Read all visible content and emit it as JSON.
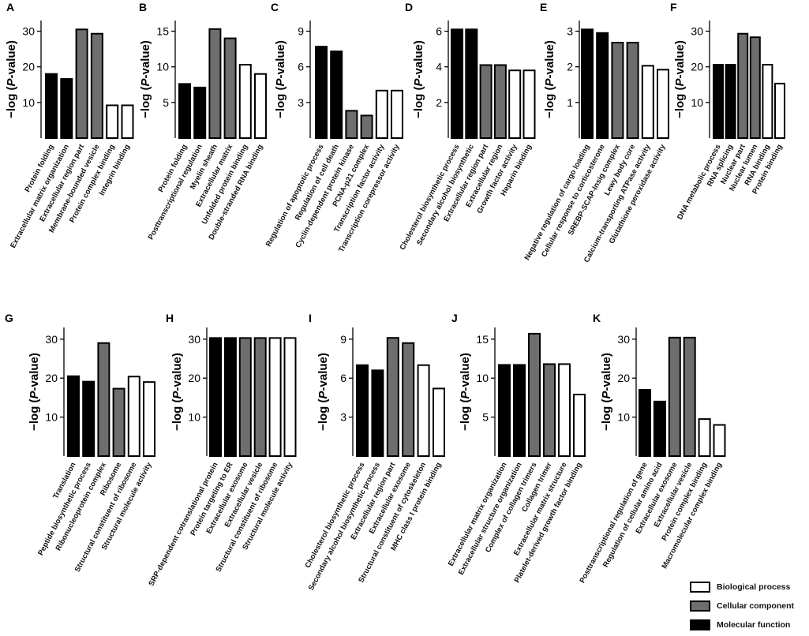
{
  "colors": {
    "Biological process": "#ffffff",
    "Cellular component": "#6e6e6e",
    "Molecular function": "#000000"
  },
  "axis_label": {
    "prefix": "−log (",
    "italic": "P",
    "suffix": "-value)"
  },
  "legend": {
    "items": [
      {
        "label": "Biological process",
        "key": "Biological process"
      },
      {
        "label": "Cellular component",
        "key": "Cellular component"
      },
      {
        "label": "Molecular function",
        "key": "Molecular function"
      }
    ]
  },
  "chart_data": [
    {
      "panel": "A",
      "type": "bar",
      "ylabel": "−log (P-value)",
      "yticks": [
        10,
        20,
        30
      ],
      "ylim": [
        0,
        33
      ],
      "categories": [
        "Protein folding",
        "Extracellular  matrix  organization",
        "Extracellular  region  part",
        "Membrane-bounded vesicle",
        "Protein complex  binding",
        "Integrin binding"
      ],
      "values": [
        18,
        16.6,
        30.5,
        29.3,
        9.2,
        9.2
      ],
      "groups": [
        "Molecular function",
        "Molecular function",
        "Cellular component",
        "Cellular component",
        "Biological process",
        "Biological process"
      ]
    },
    {
      "panel": "B",
      "type": "bar",
      "ylabel": "−log (P-value)",
      "yticks": [
        5,
        10,
        15
      ],
      "ylim": [
        0,
        16.5
      ],
      "categories": [
        "Protein folding",
        "Posttranscriptional  regulation",
        "Myelin  sheath",
        "Extracellular  matrix",
        "Unfolded protein binding",
        "Double-stranded RNA binding"
      ],
      "values": [
        7.6,
        7.1,
        15.3,
        14,
        10.3,
        9
      ],
      "groups": [
        "Molecular function",
        "Molecular function",
        "Cellular component",
        "Cellular component",
        "Biological process",
        "Biological process"
      ]
    },
    {
      "panel": "C",
      "type": "bar",
      "ylabel": "−log (P-value)",
      "yticks": [
        3,
        6,
        9
      ],
      "ylim": [
        0,
        9.9
      ],
      "categories": [
        "Regulation of apoptotic process",
        "Regulation of cell death",
        "Cyclin-dependent protein kinase",
        "PCNA-p21 complex",
        "Transcription factor activity",
        "Transcription corepressor  activity"
      ],
      "values": [
        7.7,
        7.3,
        2.3,
        1.9,
        4,
        4
      ],
      "groups": [
        "Molecular function",
        "Molecular function",
        "Cellular component",
        "Cellular component",
        "Biological process",
        "Biological process"
      ]
    },
    {
      "panel": "D",
      "type": "bar",
      "ylabel": "−log (P-value)",
      "yticks": [
        2,
        4,
        6
      ],
      "ylim": [
        0,
        6.6
      ],
      "categories": [
        "Cholesterol biosynthetic process",
        "Secondary  alcohol biosynthetic",
        "Extracellular region part",
        "Extracellular  region",
        "Growth factor activity",
        "Heparin binding"
      ],
      "values": [
        6.1,
        6.1,
        4.1,
        4.1,
        3.8,
        3.8
      ],
      "groups": [
        "Molecular function",
        "Molecular function",
        "Cellular component",
        "Cellular component",
        "Biological process",
        "Biological process"
      ]
    },
    {
      "panel": "E",
      "type": "bar",
      "ylabel": "−log (P-value)",
      "yticks": [
        1,
        2,
        3
      ],
      "ylim": [
        0,
        3.3
      ],
      "categories": [
        "Negative regulation of cargo loading",
        "Cellular response  to corticosterone",
        "SREBP-SCAP-Insig  complex",
        "Lewy body core",
        "Calcium-transporting ATPase  activity",
        "Glutathione peroxidase  activity"
      ],
      "values": [
        3.05,
        2.95,
        2.68,
        2.68,
        2.03,
        1.92
      ],
      "groups": [
        "Molecular function",
        "Molecular function",
        "Cellular component",
        "Cellular component",
        "Biological process",
        "Biological process"
      ]
    },
    {
      "panel": "F",
      "type": "bar",
      "ylabel": "−log (P-value)",
      "yticks": [
        10,
        20,
        30
      ],
      "ylim": [
        0,
        33
      ],
      "categories": [
        "DNA metabolic process",
        "RNA splicing",
        "Nuclear part",
        "Nuclear lumen",
        "RNA binding",
        "Protein binding"
      ],
      "values": [
        20.6,
        20.6,
        29.3,
        28.3,
        20.6,
        15.3
      ],
      "groups": [
        "Molecular function",
        "Molecular function",
        "Cellular component",
        "Cellular component",
        "Biological process",
        "Biological process"
      ]
    },
    {
      "panel": "G",
      "type": "bar",
      "ylabel": "−log (P-value)",
      "yticks": [
        10,
        20,
        30
      ],
      "ylim": [
        0,
        33
      ],
      "categories": [
        "Translation",
        "Peptide biosynthetic process",
        "Ribonucleoprotein complex",
        "Ribosome",
        "Structural constituent of ribosome",
        "Structural molecule activity"
      ],
      "values": [
        20.5,
        19.1,
        29,
        17.3,
        20.4,
        19
      ],
      "groups": [
        "Molecular function",
        "Molecular function",
        "Cellular component",
        "Cellular component",
        "Biological process",
        "Biological process"
      ]
    },
    {
      "panel": "H",
      "type": "bar",
      "ylabel": "−log (P-value)",
      "yticks": [
        10,
        20,
        30
      ],
      "ylim": [
        0,
        33
      ],
      "categories": [
        "SRP-dependent cotranslational protein",
        "Protein targeting to ER",
        "Extracellular exosome",
        "Extracellular  vesicle",
        "Structural constituent of ribosome",
        "Structural molecule activity"
      ],
      "values": [
        30.3,
        30.3,
        30.3,
        30.3,
        30.3,
        30.3
      ],
      "groups": [
        "Molecular function",
        "Molecular function",
        "Cellular component",
        "Cellular component",
        "Biological process",
        "Biological process"
      ]
    },
    {
      "panel": "I",
      "type": "bar",
      "ylabel": "−log (P-value)",
      "yticks": [
        3,
        6,
        9
      ],
      "ylim": [
        0,
        9.9
      ],
      "categories": [
        "Cholesterol biosynthetic process",
        "Secondary alcohol biosynthetic process",
        "Extracellular  region  part",
        "Extracellular exosome",
        "Structural constituent of cytoskeleton",
        "MHC class I protein binding"
      ],
      "values": [
        7,
        6.6,
        9.1,
        8.7,
        7,
        5.2
      ],
      "groups": [
        "Molecular function",
        "Molecular function",
        "Cellular component",
        "Cellular component",
        "Biological process",
        "Biological process"
      ]
    },
    {
      "panel": "J",
      "type": "bar",
      "ylabel": "−log (P-value)",
      "yticks": [
        5,
        10,
        15
      ],
      "ylim": [
        0,
        16.5
      ],
      "categories": [
        "Extracellular  matrix  organization",
        "Extracellular  structure  organization",
        "Complex of collagen trimers",
        "Collagen  trimer",
        "Extracellular  matrix  structure",
        "Platelet-derived  growth factor binding"
      ],
      "values": [
        11.7,
        11.7,
        15.7,
        11.8,
        11.8,
        7.9
      ],
      "groups": [
        "Molecular function",
        "Molecular function",
        "Cellular component",
        "Cellular component",
        "Biological process",
        "Biological process"
      ]
    },
    {
      "panel": "K",
      "type": "bar",
      "ylabel": "−log (P-value)",
      "yticks": [
        10,
        20,
        30
      ],
      "ylim": [
        0,
        33
      ],
      "categories": [
        "Posttranscriptional  regulation of gene",
        "Regulation of cellular amino acid",
        "Extracellular exosome",
        "Extracellular  vesicle",
        "Protein complex binding",
        "Macromolecular  complex  binding"
      ],
      "values": [
        17,
        14,
        30.4,
        30.4,
        9.5,
        8
      ],
      "groups": [
        "Molecular function",
        "Molecular function",
        "Cellular component",
        "Cellular component",
        "Biological process",
        "Biological process"
      ]
    }
  ]
}
